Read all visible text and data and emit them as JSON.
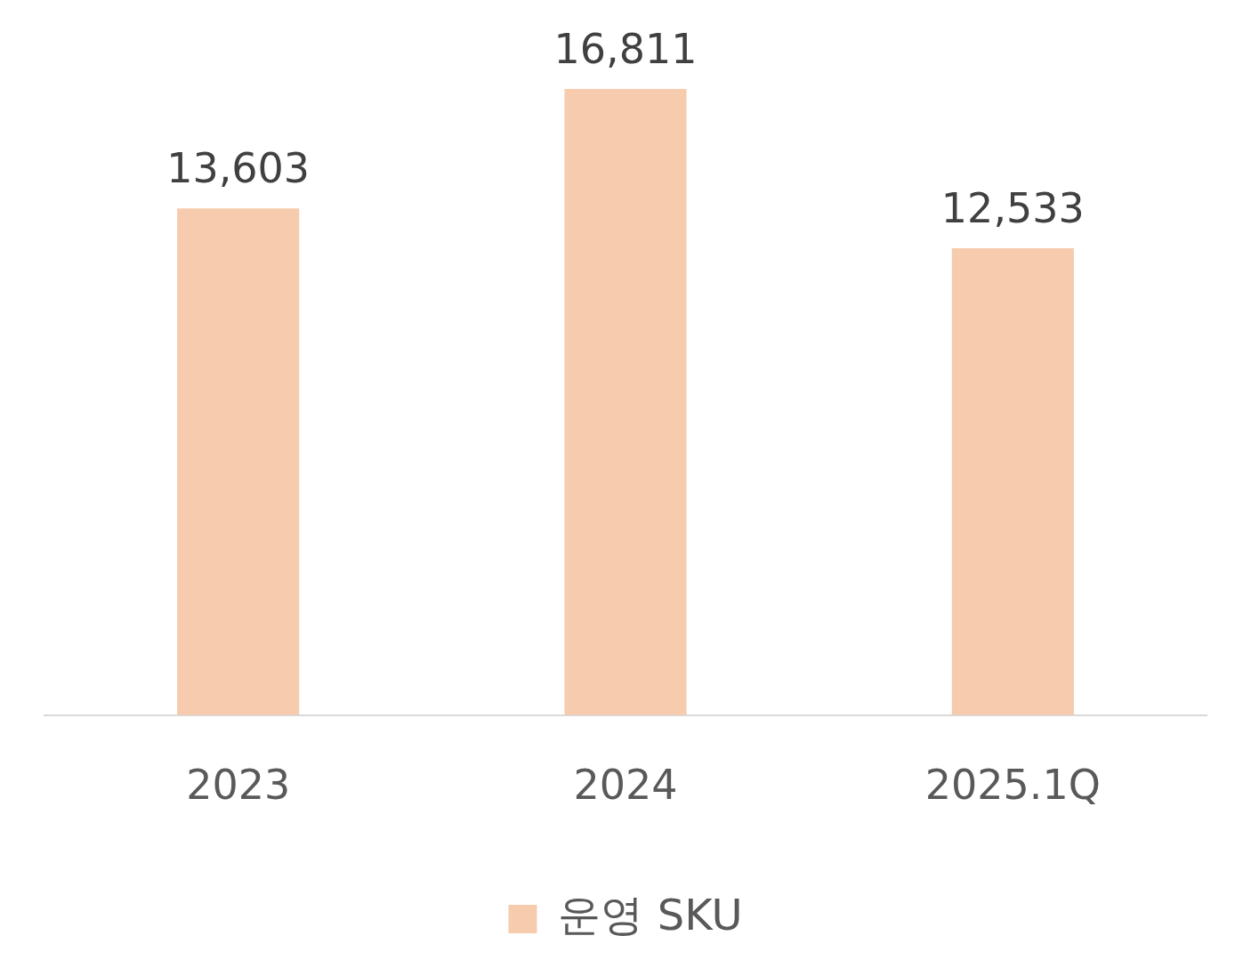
{
  "chart_data": {
    "type": "bar",
    "categories": [
      "2023",
      "2024",
      "2025.1Q"
    ],
    "series": [
      {
        "name": "운영 SKU",
        "color": "#f7cbad",
        "values": [
          13603,
          16811,
          12533
        ],
        "value_labels": [
          "13,603",
          "16,811",
          "12,533"
        ]
      }
    ],
    "grid": false,
    "legend": "bottom"
  }
}
